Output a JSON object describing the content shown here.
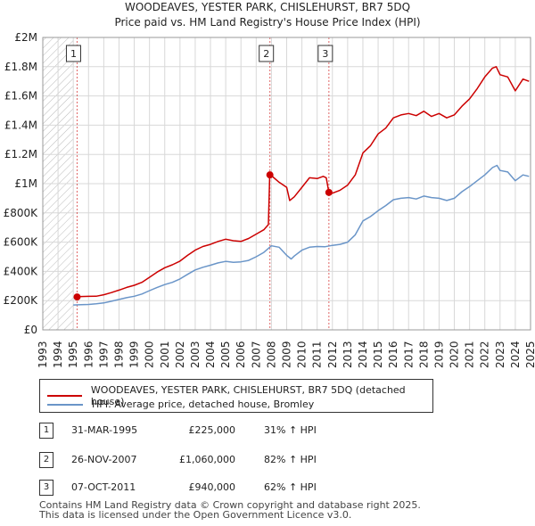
{
  "chart_data": {
    "type": "line",
    "title": "WOODEAVES, YESTER PARK, CHISLEHURST, BR7 5DQ",
    "subtitle": "Price paid vs. HM Land Registry's House Price Index (HPI)",
    "x_range": [
      1993,
      2025
    ],
    "ylim": [
      0,
      2000000
    ],
    "y_ticks": [
      0,
      200000,
      400000,
      600000,
      800000,
      1000000,
      1200000,
      1400000,
      1600000,
      1800000,
      2000000
    ],
    "y_tick_labels": [
      "£0",
      "£200K",
      "£400K",
      "£600K",
      "£800K",
      "£1M",
      "£1.2M",
      "£1.4M",
      "£1.6M",
      "£1.8M",
      "£2M"
    ],
    "x_ticks": [
      1993,
      1994,
      1995,
      1996,
      1997,
      1998,
      1999,
      2000,
      2001,
      2002,
      2003,
      2004,
      2005,
      2006,
      2007,
      2008,
      2009,
      2010,
      2011,
      2012,
      2013,
      2014,
      2015,
      2016,
      2017,
      2018,
      2019,
      2020,
      2021,
      2022,
      2023,
      2024,
      2025
    ],
    "grid": true,
    "series": [
      {
        "name": "WOODEAVES, YESTER PARK, CHISLEHURST, BR7 5DQ (detached house)",
        "color": "#cc0000",
        "points": [
          [
            1995.25,
            225000
          ],
          [
            1995.5,
            228000
          ],
          [
            1996.0,
            229000
          ],
          [
            1996.5,
            230000
          ],
          [
            1997.0,
            240000
          ],
          [
            1997.5,
            255000
          ],
          [
            1998.0,
            272000
          ],
          [
            1998.5,
            290000
          ],
          [
            1999.0,
            305000
          ],
          [
            1999.5,
            325000
          ],
          [
            2000.0,
            360000
          ],
          [
            2000.5,
            395000
          ],
          [
            2001.0,
            425000
          ],
          [
            2001.5,
            445000
          ],
          [
            2002.0,
            470000
          ],
          [
            2002.5,
            510000
          ],
          [
            2003.0,
            545000
          ],
          [
            2003.5,
            570000
          ],
          [
            2004.0,
            585000
          ],
          [
            2004.5,
            605000
          ],
          [
            2005.0,
            620000
          ],
          [
            2005.5,
            610000
          ],
          [
            2006.0,
            605000
          ],
          [
            2006.5,
            625000
          ],
          [
            2007.0,
            655000
          ],
          [
            2007.5,
            685000
          ],
          [
            2007.8,
            720000
          ],
          [
            2007.89,
            1060000
          ],
          [
            2008.0,
            1055000
          ],
          [
            2008.5,
            1010000
          ],
          [
            2009.0,
            975000
          ],
          [
            2009.2,
            885000
          ],
          [
            2009.5,
            910000
          ],
          [
            2010.0,
            975000
          ],
          [
            2010.5,
            1040000
          ],
          [
            2011.0,
            1035000
          ],
          [
            2011.4,
            1050000
          ],
          [
            2011.6,
            1040000
          ],
          [
            2011.77,
            940000
          ],
          [
            2012.0,
            935000
          ],
          [
            2012.5,
            955000
          ],
          [
            2013.0,
            990000
          ],
          [
            2013.5,
            1060000
          ],
          [
            2014.0,
            1210000
          ],
          [
            2014.5,
            1260000
          ],
          [
            2015.0,
            1340000
          ],
          [
            2015.5,
            1380000
          ],
          [
            2016.0,
            1450000
          ],
          [
            2016.5,
            1470000
          ],
          [
            2017.0,
            1480000
          ],
          [
            2017.5,
            1465000
          ],
          [
            2018.0,
            1495000
          ],
          [
            2018.5,
            1460000
          ],
          [
            2019.0,
            1480000
          ],
          [
            2019.5,
            1450000
          ],
          [
            2020.0,
            1470000
          ],
          [
            2020.5,
            1530000
          ],
          [
            2021.0,
            1580000
          ],
          [
            2021.5,
            1650000
          ],
          [
            2022.0,
            1730000
          ],
          [
            2022.5,
            1790000
          ],
          [
            2022.75,
            1800000
          ],
          [
            2023.0,
            1745000
          ],
          [
            2023.5,
            1730000
          ],
          [
            2024.0,
            1635000
          ],
          [
            2024.5,
            1715000
          ],
          [
            2024.9,
            1700000
          ]
        ]
      },
      {
        "name": "HPI: Average price, detached house, Bromley",
        "color": "#6a95c8",
        "points": [
          [
            1995.0,
            170000
          ],
          [
            1995.5,
            172000
          ],
          [
            1996.0,
            174000
          ],
          [
            1996.5,
            178000
          ],
          [
            1997.0,
            184000
          ],
          [
            1997.5,
            196000
          ],
          [
            1998.0,
            208000
          ],
          [
            1998.5,
            220000
          ],
          [
            1999.0,
            230000
          ],
          [
            1999.5,
            245000
          ],
          [
            2000.0,
            268000
          ],
          [
            2000.5,
            290000
          ],
          [
            2001.0,
            310000
          ],
          [
            2001.5,
            325000
          ],
          [
            2002.0,
            348000
          ],
          [
            2002.5,
            380000
          ],
          [
            2003.0,
            410000
          ],
          [
            2003.5,
            428000
          ],
          [
            2004.0,
            442000
          ],
          [
            2004.5,
            458000
          ],
          [
            2005.0,
            468000
          ],
          [
            2005.5,
            462000
          ],
          [
            2006.0,
            465000
          ],
          [
            2006.5,
            475000
          ],
          [
            2007.0,
            500000
          ],
          [
            2007.5,
            530000
          ],
          [
            2008.0,
            575000
          ],
          [
            2008.5,
            565000
          ],
          [
            2009.0,
            510000
          ],
          [
            2009.3,
            485000
          ],
          [
            2009.5,
            505000
          ],
          [
            2010.0,
            545000
          ],
          [
            2010.5,
            565000
          ],
          [
            2011.0,
            570000
          ],
          [
            2011.5,
            568000
          ],
          [
            2012.0,
            578000
          ],
          [
            2012.5,
            585000
          ],
          [
            2013.0,
            600000
          ],
          [
            2013.5,
            650000
          ],
          [
            2014.0,
            745000
          ],
          [
            2014.5,
            775000
          ],
          [
            2015.0,
            815000
          ],
          [
            2015.5,
            850000
          ],
          [
            2016.0,
            890000
          ],
          [
            2016.5,
            900000
          ],
          [
            2017.0,
            905000
          ],
          [
            2017.5,
            895000
          ],
          [
            2018.0,
            915000
          ],
          [
            2018.5,
            905000
          ],
          [
            2019.0,
            900000
          ],
          [
            2019.5,
            885000
          ],
          [
            2020.0,
            900000
          ],
          [
            2020.5,
            945000
          ],
          [
            2021.0,
            980000
          ],
          [
            2021.5,
            1020000
          ],
          [
            2022.0,
            1060000
          ],
          [
            2022.5,
            1110000
          ],
          [
            2022.8,
            1125000
          ],
          [
            2023.0,
            1090000
          ],
          [
            2023.5,
            1080000
          ],
          [
            2024.0,
            1020000
          ],
          [
            2024.5,
            1060000
          ],
          [
            2024.9,
            1050000
          ]
        ]
      }
    ],
    "sales": [
      {
        "num": "1",
        "x": 1995.25,
        "price_value": 225000,
        "date": "31-MAR-1995",
        "price": "£225,000",
        "hpi": "31% ↑ HPI"
      },
      {
        "num": "2",
        "x": 2007.9,
        "price_value": 1060000,
        "date": "26-NOV-2007",
        "price": "£1,060,000",
        "hpi": "82% ↑ HPI"
      },
      {
        "num": "3",
        "x": 2011.77,
        "price_value": 940000,
        "date": "07-OCT-2011",
        "price": "£940,000",
        "hpi": "62% ↑ HPI"
      }
    ],
    "hatch_before": 1995.0,
    "colors": {
      "grid": "#d8d8d8",
      "hatch": "#bbbbbb",
      "property": "#cc0000",
      "hpi": "#6a95c8"
    }
  },
  "legend": {
    "property_label": "WOODEAVES, YESTER PARK, CHISLEHURST, BR7 5DQ (detached house)",
    "hpi_label": "HPI: Average price, detached house, Bromley"
  },
  "footer": {
    "line1": "Contains HM Land Registry data © Crown copyright and database right 2025.",
    "line2": "This data is licensed under the Open Government Licence v3.0."
  }
}
